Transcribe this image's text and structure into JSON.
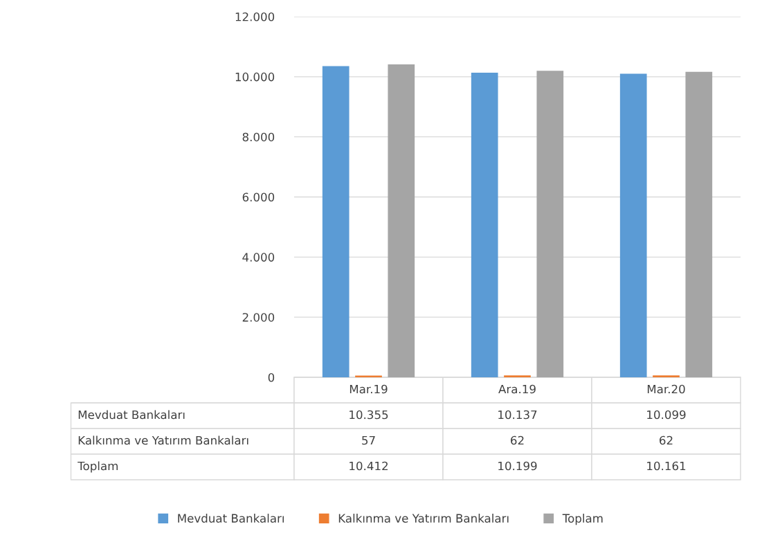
{
  "chart_data": {
    "type": "bar",
    "categories": [
      "Mar.19",
      "Ara.19",
      "Mar.20"
    ],
    "series": [
      {
        "name": "Mevduat Bankaları",
        "color": "#5b9bd5",
        "values": [
          10355,
          10137,
          10099
        ],
        "value_labels": [
          "10.355",
          "10.137",
          "10.099"
        ]
      },
      {
        "name": "Kalkınma ve Yatırım Bankaları",
        "color": "#ed7d31",
        "values": [
          57,
          62,
          62
        ],
        "value_labels": [
          "57",
          "62",
          "62"
        ]
      },
      {
        "name": "Toplam",
        "color": "#a5a5a5",
        "values": [
          10412,
          10199,
          10161
        ],
        "value_labels": [
          "10.412",
          "10.199",
          "10.161"
        ]
      }
    ],
    "ylim": [
      0,
      12000
    ],
    "yticks": [
      0,
      {
        "value": 2000,
        "label": "2.000"
      },
      {
        "value": 4000,
        "label": "4.000"
      },
      {
        "value": 6000,
        "label": "6.000"
      },
      {
        "value": 8000,
        "label": "8.000"
      },
      {
        "value": 10000,
        "label": "10.000"
      },
      {
        "value": 12000,
        "label": "12.000"
      }
    ],
    "grid": "y",
    "legend": "bottom"
  }
}
